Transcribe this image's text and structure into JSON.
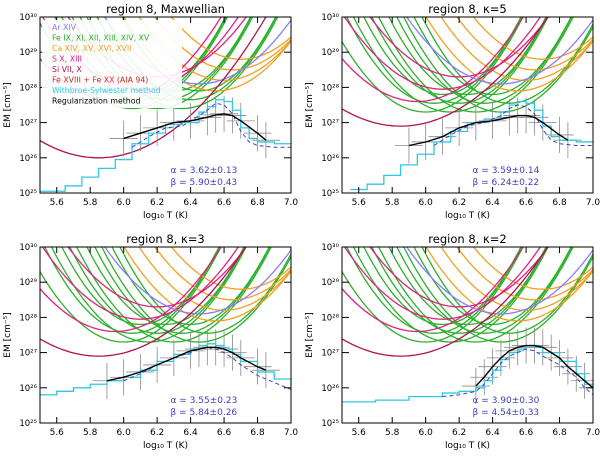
{
  "figure": {
    "ylabel": "EM [cm⁻⁵]",
    "xlabel": "log₁₀ T (K)",
    "xticks": [
      "5.6",
      "5.8",
      "6.0",
      "6.2",
      "6.4",
      "6.6",
      "6.8",
      "7.0"
    ],
    "yticks": [
      "10²⁵",
      "10²⁶",
      "10²⁷",
      "10²⁸",
      "10²⁹",
      "10³⁰"
    ],
    "legend": [
      {
        "label": "Ar XIV",
        "color": "#8a7cff"
      },
      {
        "label": "Fe IX, XI, XII, XIII, XIV, XV",
        "color": "#2bb02b"
      },
      {
        "label": "Ca XIV, XV, XVI, XVII",
        "color": "#f0a020"
      },
      {
        "label": "S X, XIII",
        "color": "#e02080"
      },
      {
        "label": "Si VII, X",
        "color": "#b01050"
      },
      {
        "label": "Fe XVIII + Fe XX (AIA 94)",
        "color": "#e02020"
      },
      {
        "label": "Withbroe-Sylwester method",
        "color": "#30c8e0"
      },
      {
        "label": "Regularization method",
        "color": "#000000"
      }
    ],
    "colors": {
      "green": "#2bb02b",
      "orange": "#f0a020",
      "magenta": "#e02080",
      "purple": "#8a7cff",
      "cyan": "#30c8e0",
      "blue": "#4040c0",
      "black": "#000000"
    }
  },
  "chart_data": [
    {
      "type": "line",
      "title": "region 8,    Maxwellian",
      "xlabel": "log₁₀ T (K)",
      "ylabel": "EM [cm⁻⁵]",
      "xlim": [
        5.5,
        7.0
      ],
      "ylim_log10": [
        25,
        30
      ],
      "alpha": "α = 3.62±0.13",
      "beta": "β = 5.90±0.43",
      "has_legend": true,
      "series": [
        {
          "name": "Regularization method",
          "x": [
            6.0,
            6.1,
            6.2,
            6.3,
            6.4,
            6.5,
            6.55,
            6.6,
            6.65,
            6.7,
            6.8,
            6.85
          ],
          "log_em": [
            26.55,
            26.7,
            26.85,
            27.0,
            27.05,
            27.15,
            27.22,
            27.25,
            27.2,
            27.05,
            26.7,
            26.5
          ]
        },
        {
          "name": "Withbroe-Sylwester method",
          "x": [
            5.5,
            5.65,
            5.75,
            5.85,
            5.95,
            6.05,
            6.15,
            6.25,
            6.35,
            6.45,
            6.5,
            6.55,
            6.6,
            6.65,
            6.7,
            6.75,
            6.8,
            6.9,
            7.0
          ],
          "log_em": [
            25.05,
            25.2,
            25.45,
            25.7,
            25.95,
            26.4,
            26.7,
            26.95,
            27.0,
            27.3,
            27.45,
            27.65,
            27.6,
            27.35,
            26.85,
            26.55,
            26.45,
            26.4,
            26.4
          ]
        }
      ]
    },
    {
      "type": "line",
      "title": "region 8,    κ=5",
      "xlabel": "log₁₀ T (K)",
      "ylabel": "EM [cm⁻⁵]",
      "xlim": [
        5.5,
        7.0
      ],
      "ylim_log10": [
        25,
        30
      ],
      "alpha": "α = 3.59±0.14",
      "beta": "β = 6.24±0.22",
      "has_legend": false,
      "series": [
        {
          "name": "Regularization method",
          "x": [
            5.9,
            6.0,
            6.1,
            6.2,
            6.3,
            6.4,
            6.5,
            6.55,
            6.6,
            6.65,
            6.7,
            6.8,
            6.85
          ],
          "log_em": [
            26.35,
            26.45,
            26.6,
            26.85,
            27.0,
            27.05,
            27.15,
            27.2,
            27.2,
            27.15,
            27.0,
            26.65,
            26.5
          ]
        },
        {
          "name": "Withbroe-Sylwester method",
          "x": [
            5.55,
            5.65,
            5.75,
            5.85,
            5.95,
            6.05,
            6.15,
            6.25,
            6.35,
            6.45,
            6.5,
            6.55,
            6.6,
            6.65,
            6.7,
            6.75,
            6.8,
            6.9,
            7.0
          ],
          "log_em": [
            25.1,
            25.25,
            25.5,
            25.8,
            26.1,
            26.45,
            26.75,
            27.0,
            27.1,
            27.3,
            27.5,
            27.6,
            27.55,
            27.35,
            26.9,
            26.6,
            26.5,
            26.45,
            26.45
          ]
        }
      ]
    },
    {
      "type": "line",
      "title": "region 8,    κ=3",
      "xlabel": "log₁₀ T (K)",
      "ylabel": "EM [cm⁻⁵]",
      "xlim": [
        5.5,
        7.0
      ],
      "ylim_log10": [
        25,
        30
      ],
      "alpha": "α = 3.55±0.23",
      "beta": "β = 5.84±0.26",
      "has_legend": false,
      "series": [
        {
          "name": "Regularization method",
          "x": [
            5.9,
            6.0,
            6.1,
            6.2,
            6.3,
            6.4,
            6.45,
            6.5,
            6.55,
            6.6,
            6.65,
            6.7,
            6.8,
            6.85
          ],
          "log_em": [
            26.2,
            26.3,
            26.45,
            26.65,
            26.85,
            27.05,
            27.1,
            27.15,
            27.15,
            27.1,
            27.0,
            26.85,
            26.6,
            26.5
          ]
        },
        {
          "name": "Withbroe-Sylwester method",
          "x": [
            5.5,
            5.6,
            5.7,
            5.8,
            5.9,
            6.0,
            6.1,
            6.2,
            6.3,
            6.4,
            6.45,
            6.5,
            6.55,
            6.6,
            6.65,
            6.7,
            6.8,
            6.9,
            7.0
          ],
          "log_em": [
            25.8,
            25.9,
            26.0,
            26.1,
            26.2,
            26.3,
            26.5,
            26.75,
            26.95,
            27.1,
            27.2,
            27.25,
            27.2,
            27.1,
            26.95,
            26.75,
            26.45,
            26.25,
            26.05
          ]
        }
      ]
    },
    {
      "type": "line",
      "title": "region 8,    κ=2",
      "xlabel": "log₁₀ T (K)",
      "ylabel": "EM [cm⁻⁵]",
      "xlim": [
        5.5,
        7.0
      ],
      "ylim_log10": [
        25,
        30
      ],
      "alpha": "α = 3.90±0.30",
      "beta": "β = 4.54±0.33",
      "has_legend": false,
      "series": [
        {
          "name": "Regularization method",
          "x": [
            6.3,
            6.35,
            6.4,
            6.45,
            6.5,
            6.55,
            6.6,
            6.65,
            6.7,
            6.75,
            6.8,
            6.85,
            6.9,
            6.95,
            7.0
          ],
          "log_em": [
            26.05,
            26.3,
            26.6,
            26.85,
            27.05,
            27.15,
            27.2,
            27.2,
            27.15,
            27.0,
            26.85,
            26.6,
            26.4,
            26.2,
            26.0
          ]
        },
        {
          "name": "Withbroe-Sylwester method",
          "x": [
            5.5,
            5.7,
            5.9,
            6.1,
            6.2,
            6.3,
            6.35,
            6.4,
            6.45,
            6.5,
            6.55,
            6.6,
            6.65,
            6.7,
            6.8,
            6.9,
            6.95,
            7.0
          ],
          "log_em": [
            25.6,
            25.65,
            25.75,
            25.85,
            25.9,
            26.0,
            26.2,
            26.5,
            26.8,
            27.0,
            27.1,
            27.2,
            27.15,
            27.0,
            26.75,
            26.4,
            26.1,
            25.9
          ]
        }
      ]
    }
  ]
}
